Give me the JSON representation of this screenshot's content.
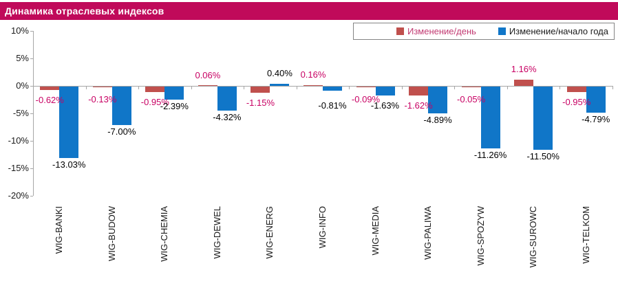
{
  "title": "Динамика отраслевых индексов",
  "legend": {
    "items": [
      {
        "label": "Изменение/день",
        "swatch_color": "#C0504D",
        "label_color": "#C23A72"
      },
      {
        "label": "Изменение/начало года",
        "swatch_color": "#1076C8",
        "label_color": "#1a1a1a"
      }
    ]
  },
  "colors": {
    "title_bar_bg": "#C00A5A",
    "title_text": "#FFFFFF",
    "bar_day": "#C0504D",
    "bar_ytd": "#1076C8",
    "label_day": "#C80063",
    "label_ytd": "#000000",
    "axis": "#A6A6A6"
  },
  "chart_data": {
    "type": "bar",
    "title": "Динамика отраслевых индексов",
    "categories": [
      "WIG-BANKI",
      "WIG-BUDOW",
      "WIG-CHEMIA",
      "WIG-DEWEL",
      "WIG-ENERG",
      "WIG-INFO",
      "WIG-MEDIA",
      "WIG-PALIWA",
      "WIG-SPOZYW",
      "WIG-SUROWC",
      "WIG-TELKOM"
    ],
    "series": [
      {
        "name": "Изменение/день",
        "color": "#C0504D",
        "values": [
          -0.62,
          -0.13,
          -0.95,
          0.06,
          -1.15,
          0.16,
          -0.09,
          -1.62,
          -0.05,
          1.16,
          -0.95
        ],
        "labels": [
          "-0.62%",
          "-0.13%",
          "-0.95%",
          "0.06%",
          "-1.15%",
          "0.16%",
          "-0.09%",
          "-1.62%",
          "-0.05%",
          "1.16%",
          "-0.95%"
        ]
      },
      {
        "name": "Изменение/начало года",
        "color": "#1076C8",
        "values": [
          -13.03,
          -7.0,
          -2.39,
          -4.32,
          0.4,
          -0.81,
          -1.63,
          -4.89,
          -11.26,
          -11.5,
          -4.79
        ],
        "labels": [
          "-13.03%",
          "-7.00%",
          "-2.39%",
          "-4.32%",
          "0.40%",
          "-0.81%",
          "-1.63%",
          "-4.89%",
          "-11.26%",
          "-11.50%",
          "-4.79%"
        ]
      }
    ],
    "ylim": [
      -20,
      10
    ],
    "yticks": [
      {
        "v": 10,
        "label": "10%"
      },
      {
        "v": 5,
        "label": "5%"
      },
      {
        "v": 0,
        "label": "0%"
      },
      {
        "v": -5,
        "label": "-5%"
      },
      {
        "v": -10,
        "label": "-10%"
      },
      {
        "v": -15,
        "label": "-15%"
      },
      {
        "v": -20,
        "label": "-20%"
      }
    ],
    "grid": false,
    "legend_position": "top-right"
  }
}
